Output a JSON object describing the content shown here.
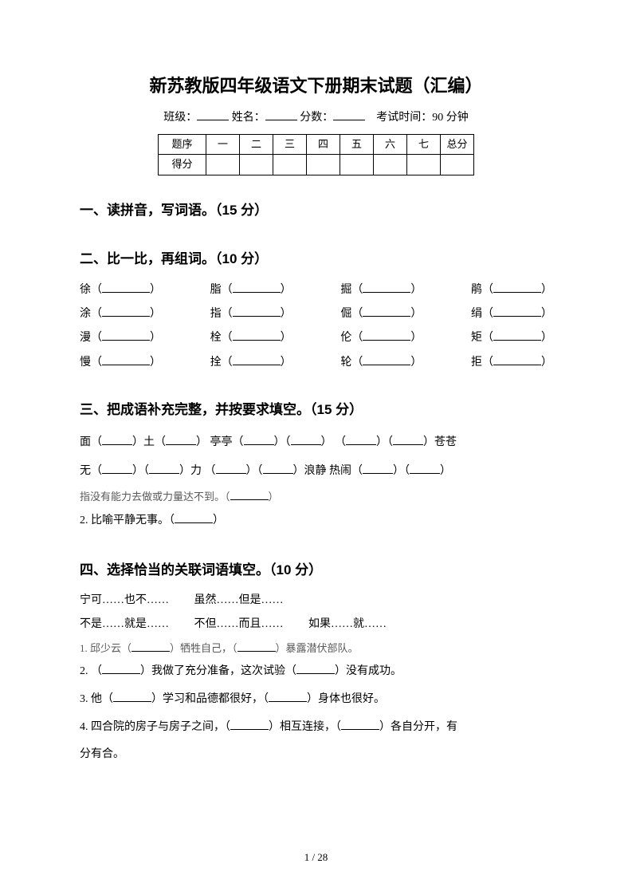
{
  "title": "新苏教版四年级语文下册期末试题（汇编）",
  "info": {
    "class_label": "班级：",
    "name_label": "姓名：",
    "score_label": "分数：",
    "exam_time_label": "考试时间：",
    "exam_time_value": "90 分钟"
  },
  "score_table": {
    "row1": [
      "题序",
      "一",
      "二",
      "三",
      "四",
      "五",
      "六",
      "七",
      "总分"
    ],
    "row2_label": "得分"
  },
  "section1": {
    "heading": "一、读拼音，写词语。（15 分）"
  },
  "section2": {
    "heading": "二、比一比，再组词。（10 分）",
    "rows": [
      [
        "徐",
        "脂",
        "掘",
        "鹃"
      ],
      [
        "涂",
        "指",
        "倔",
        "绢"
      ],
      [
        "漫",
        "栓",
        "伦",
        "矩"
      ],
      [
        "慢",
        "拴",
        "轮",
        "拒"
      ]
    ]
  },
  "section3": {
    "heading": "三、把成语补充完整，并按要求填空。（15 分）",
    "line1a": "面（",
    "line1b": "）土（",
    "line1c": "）  亭亭（",
    "line1d": "）（",
    "line1e": "）   （",
    "line1f": "）（",
    "line1g": "）苍苍",
    "line2a": "无（",
    "line2b": "）（",
    "line2c": "）力   （",
    "line2d": "）（",
    "line2e": "）浪静   热闹（",
    "line2f": "）（",
    "line2g": "）",
    "note1": "指没有能力去做或力量达不到。（",
    "note1b": "）",
    "q2": "2. 比喻平静无事。（",
    "q2b": "）"
  },
  "section4": {
    "heading": "四、选择恰当的关联词语填空。（10 分）",
    "opts1": [
      "宁可……也不……",
      "虽然……但是……"
    ],
    "opts2": [
      "不是……就是……",
      "不但……而且……",
      "如果……就……"
    ],
    "q1a": "1.  邱少云（",
    "q1b": "）牺牲自己，（",
    "q1c": "）暴露潜伏部队。",
    "q2a": "2. （",
    "q2b": "）我做了充分准备，这次试验（",
    "q2c": "）没有成功。",
    "q3a": "3. 他（",
    "q3b": "）学习和品德都很好，（",
    "q3c": "）身体也很好。",
    "q4a": "4. 四合院的房子与房子之间，（",
    "q4b": "）相互连接，（",
    "q4c": "）各自分开，有",
    "q4d": "分有合。"
  },
  "page_number": "1 / 28"
}
